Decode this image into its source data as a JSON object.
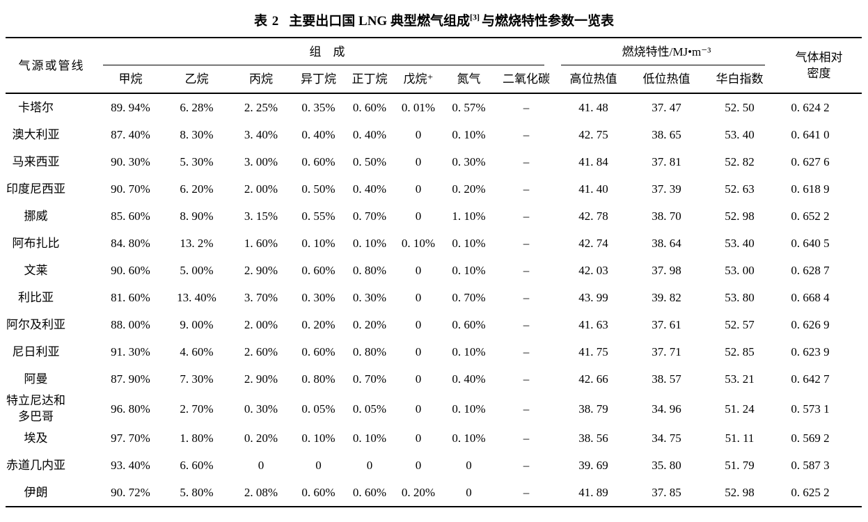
{
  "title": {
    "label": "表 2",
    "main": "主要出口国 LNG 典型燃气组成",
    "superscript": "[3]",
    "suffix": "与燃烧特性参数一览表"
  },
  "table": {
    "header": {
      "source": "气源或管线",
      "composition": "组　成",
      "combustion": "燃烧特性/MJ•m⁻³",
      "density": "气体相对\n密度"
    },
    "columns": [
      "甲烷",
      "乙烷",
      "丙烷",
      "异丁烷",
      "正丁烷",
      "戊烷⁺",
      "氮气",
      "二氧化碳",
      "高位热值",
      "低位热值",
      "华白指数"
    ],
    "rows": [
      {
        "name": "卡塔尔",
        "values": [
          "89. 94%",
          "6. 28%",
          "2. 25%",
          "0. 35%",
          "0. 60%",
          "0. 01%",
          "0. 57%",
          "–",
          "41. 48",
          "37. 47",
          "52. 50",
          "0. 624 2"
        ]
      },
      {
        "name": "澳大利亚",
        "values": [
          "87. 40%",
          "8. 30%",
          "3. 40%",
          "0. 40%",
          "0. 40%",
          "0",
          "0. 10%",
          "–",
          "42. 75",
          "38. 65",
          "53. 40",
          "0. 641 0"
        ]
      },
      {
        "name": "马来西亚",
        "values": [
          "90. 30%",
          "5. 30%",
          "3. 00%",
          "0. 60%",
          "0. 50%",
          "0",
          "0. 30%",
          "–",
          "41. 84",
          "37. 81",
          "52. 82",
          "0. 627 6"
        ]
      },
      {
        "name": "印度尼西亚",
        "values": [
          "90. 70%",
          "6. 20%",
          "2. 00%",
          "0. 50%",
          "0. 40%",
          "0",
          "0. 20%",
          "–",
          "41. 40",
          "37. 39",
          "52. 63",
          "0. 618 9"
        ]
      },
      {
        "name": "挪威",
        "values": [
          "85. 60%",
          "8. 90%",
          "3. 15%",
          "0. 55%",
          "0. 70%",
          "0",
          "1. 10%",
          "–",
          "42. 78",
          "38. 70",
          "52. 98",
          "0. 652 2"
        ]
      },
      {
        "name": "阿布扎比",
        "values": [
          "84. 80%",
          "13. 2%",
          "1. 60%",
          "0. 10%",
          "0. 10%",
          "0. 10%",
          "0. 10%",
          "–",
          "42. 74",
          "38. 64",
          "53. 40",
          "0. 640 5"
        ]
      },
      {
        "name": "文莱",
        "values": [
          "90. 60%",
          "5. 00%",
          "2. 90%",
          "0. 60%",
          "0. 80%",
          "0",
          "0. 10%",
          "–",
          "42. 03",
          "37. 98",
          "53. 00",
          "0. 628 7"
        ]
      },
      {
        "name": "利比亚",
        "values": [
          "81. 60%",
          "13. 40%",
          "3. 70%",
          "0. 30%",
          "0. 30%",
          "0",
          "0. 70%",
          "–",
          "43. 99",
          "39. 82",
          "53. 80",
          "0. 668 4"
        ]
      },
      {
        "name": "阿尔及利亚",
        "values": [
          "88. 00%",
          "9. 00%",
          "2. 00%",
          "0. 20%",
          "0. 20%",
          "0",
          "0. 60%",
          "–",
          "41. 63",
          "37. 61",
          "52. 57",
          "0. 626 9"
        ]
      },
      {
        "name": "尼日利亚",
        "values": [
          "91. 30%",
          "4. 60%",
          "2. 60%",
          "0. 60%",
          "0. 80%",
          "0",
          "0. 10%",
          "–",
          "41. 75",
          "37. 71",
          "52. 85",
          "0. 623 9"
        ]
      },
      {
        "name": "阿曼",
        "values": [
          "87. 90%",
          "7. 30%",
          "2. 90%",
          "0. 80%",
          "0. 70%",
          "0",
          "0. 40%",
          "–",
          "42. 66",
          "38. 57",
          "53. 21",
          "0. 642 7"
        ]
      },
      {
        "name": "特立尼达和\n多巴哥",
        "values": [
          "96. 80%",
          "2. 70%",
          "0. 30%",
          "0. 05%",
          "0. 05%",
          "0",
          "0. 10%",
          "–",
          "38. 79",
          "34. 96",
          "51. 24",
          "0. 573 1"
        ]
      },
      {
        "name": "埃及",
        "values": [
          "97. 70%",
          "1. 80%",
          "0. 20%",
          "0. 10%",
          "0. 10%",
          "0",
          "0. 10%",
          "–",
          "38. 56",
          "34. 75",
          "51. 11",
          "0. 569 2"
        ]
      },
      {
        "name": "赤道几内亚",
        "values": [
          "93. 40%",
          "6. 60%",
          "0",
          "0",
          "0",
          "0",
          "0",
          "–",
          "39. 69",
          "35. 80",
          "51. 79",
          "0. 587 3"
        ]
      },
      {
        "name": "伊朗",
        "values": [
          "90. 72%",
          "5. 80%",
          "2. 08%",
          "0. 60%",
          "0. 60%",
          "0. 20%",
          "0",
          "–",
          "41. 89",
          "37. 85",
          "52. 98",
          "0. 625 2"
        ]
      }
    ]
  }
}
